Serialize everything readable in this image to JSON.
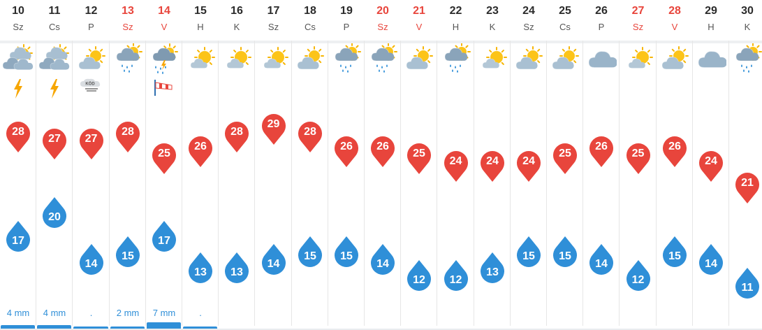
{
  "colors": {
    "high_pin": "#e8453c",
    "low_pin": "#2f8fd8",
    "weekend_text": "#e8453c",
    "precip_text": "#2f8fd8"
  },
  "days": [
    {
      "day": "10",
      "dayname": "Sz",
      "weekend": false,
      "icon": "sun-cloud-cloud-icon",
      "extra": "lightning-icon",
      "high": 28,
      "low": 17,
      "precip": "4 mm",
      "bar": 2
    },
    {
      "day": "11",
      "dayname": "Cs",
      "weekend": false,
      "icon": "sun-cloud-cloud-icon",
      "extra": "lightning-icon",
      "high": 27,
      "low": 20,
      "precip": "4 mm",
      "bar": 2
    },
    {
      "day": "12",
      "dayname": "P",
      "weekend": false,
      "icon": "partly-cloudy-icon",
      "extra": "fog-icon",
      "extra_text": "KÖD",
      "high": 27,
      "low": 14,
      "precip": ".",
      "bar": 1
    },
    {
      "day": "13",
      "dayname": "Sz",
      "weekend": true,
      "icon": "sun-cloud-rain-icon",
      "extra": "",
      "high": 28,
      "low": 15,
      "precip": "2 mm",
      "bar": 1
    },
    {
      "day": "14",
      "dayname": "V",
      "weekend": true,
      "icon": "thunderstorm-rain-icon",
      "extra": "windsock-icon",
      "high": 25,
      "low": 17,
      "precip": "7 mm",
      "bar": 4
    },
    {
      "day": "15",
      "dayname": "H",
      "weekend": false,
      "icon": "mostly-sunny-icon",
      "extra": "",
      "high": 26,
      "low": 13,
      "precip": ".",
      "bar": 1
    },
    {
      "day": "16",
      "dayname": "K",
      "weekend": false,
      "icon": "mostly-sunny-icon",
      "extra": "",
      "high": 28,
      "low": 13,
      "precip": "",
      "bar": 0
    },
    {
      "day": "17",
      "dayname": "Sz",
      "weekend": false,
      "icon": "mostly-sunny-icon",
      "extra": "",
      "high": 29,
      "low": 14,
      "precip": "",
      "bar": 0
    },
    {
      "day": "18",
      "dayname": "Cs",
      "weekend": false,
      "icon": "partly-cloudy-icon",
      "extra": "",
      "high": 28,
      "low": 15,
      "precip": "",
      "bar": 0
    },
    {
      "day": "19",
      "dayname": "P",
      "weekend": false,
      "icon": "sun-cloud-rain-icon",
      "extra": "",
      "high": 26,
      "low": 15,
      "precip": "",
      "bar": 0
    },
    {
      "day": "20",
      "dayname": "Sz",
      "weekend": true,
      "icon": "sun-cloud-rain-icon",
      "extra": "",
      "high": 26,
      "low": 14,
      "precip": "",
      "bar": 0
    },
    {
      "day": "21",
      "dayname": "V",
      "weekend": true,
      "icon": "partly-cloudy-icon",
      "extra": "",
      "high": 25,
      "low": 12,
      "precip": "",
      "bar": 0
    },
    {
      "day": "22",
      "dayname": "H",
      "weekend": false,
      "icon": "sun-cloud-rain-icon",
      "extra": "",
      "high": 24,
      "low": 12,
      "precip": "",
      "bar": 0
    },
    {
      "day": "23",
      "dayname": "K",
      "weekend": false,
      "icon": "mostly-sunny-icon",
      "extra": "",
      "high": 24,
      "low": 13,
      "precip": "",
      "bar": 0
    },
    {
      "day": "24",
      "dayname": "Sz",
      "weekend": false,
      "icon": "partly-cloudy-icon",
      "extra": "",
      "high": 24,
      "low": 15,
      "precip": "",
      "bar": 0
    },
    {
      "day": "25",
      "dayname": "Cs",
      "weekend": false,
      "icon": "partly-cloudy-icon",
      "extra": "",
      "high": 25,
      "low": 15,
      "precip": "",
      "bar": 0
    },
    {
      "day": "26",
      "dayname": "P",
      "weekend": false,
      "icon": "cloud-icon",
      "extra": "",
      "high": 26,
      "low": 14,
      "precip": "",
      "bar": 0
    },
    {
      "day": "27",
      "dayname": "Sz",
      "weekend": true,
      "icon": "mostly-sunny-icon",
      "extra": "",
      "high": 25,
      "low": 12,
      "precip": "",
      "bar": 0
    },
    {
      "day": "28",
      "dayname": "V",
      "weekend": true,
      "icon": "partly-cloudy-icon",
      "extra": "",
      "high": 26,
      "low": 15,
      "precip": "",
      "bar": 0
    },
    {
      "day": "29",
      "dayname": "H",
      "weekend": false,
      "icon": "cloud-icon",
      "extra": "",
      "high": 24,
      "low": 14,
      "precip": "",
      "bar": 0
    },
    {
      "day": "30",
      "dayname": "K",
      "weekend": false,
      "icon": "sun-cloud-rain-icon",
      "extra": "",
      "high": 21,
      "low": 11,
      "precip": "",
      "bar": 0
    }
  ]
}
